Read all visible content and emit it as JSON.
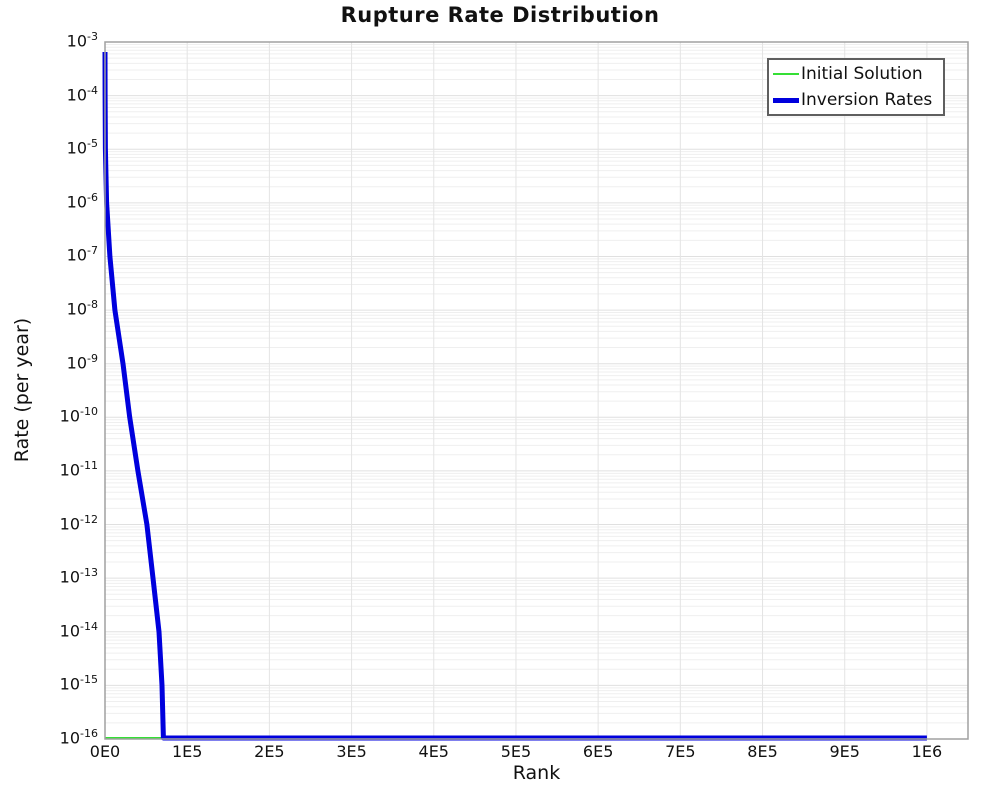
{
  "title": "Rupture Rate Distribution",
  "chart_data": {
    "type": "line",
    "title": "Rupture Rate Distribution",
    "xlabel": "Rank",
    "ylabel": "Rate (per year)",
    "x_scale": "linear",
    "y_scale": "log",
    "xlim": [
      0,
      1050000
    ],
    "ylim_exponents": [
      -16,
      -3
    ],
    "x_ticks": [
      {
        "label": "0E0",
        "value": 0
      },
      {
        "label": "1E5",
        "value": 100000
      },
      {
        "label": "2E5",
        "value": 200000
      },
      {
        "label": "3E5",
        "value": 300000
      },
      {
        "label": "4E5",
        "value": 400000
      },
      {
        "label": "5E5",
        "value": 500000
      },
      {
        "label": "6E5",
        "value": 600000
      },
      {
        "label": "7E5",
        "value": 700000
      },
      {
        "label": "8E5",
        "value": 800000
      },
      {
        "label": "9E5",
        "value": 900000
      },
      {
        "label": "1E6",
        "value": 1000000
      }
    ],
    "y_tick_exponents": [
      -3,
      -4,
      -5,
      -6,
      -7,
      -8,
      -9,
      -10,
      -11,
      -12,
      -13,
      -14,
      -15,
      -16
    ],
    "grid": true,
    "legend_position": "top-right",
    "legend": [
      {
        "label": "Initial Solution",
        "color": "#35df35",
        "line_width": 2
      },
      {
        "label": "Inversion Rates",
        "color": "#0000dd",
        "line_width": 5
      }
    ],
    "series": [
      {
        "name": "Initial Solution",
        "color": "#35df35",
        "width": 2,
        "points": [
          [
            0,
            1e-16
          ],
          [
            1000000,
            1e-16
          ]
        ]
      },
      {
        "name": "Inversion Rates",
        "color": "#0000dd",
        "width": 5,
        "points": [
          [
            0,
            0.00065
          ],
          [
            150,
            0.0001
          ],
          [
            500,
            1e-05
          ],
          [
            2000,
            1e-06
          ],
          [
            6000,
            1e-07
          ],
          [
            12000,
            1e-08
          ],
          [
            21900,
            1e-09
          ],
          [
            30000,
            1e-10
          ],
          [
            40000,
            1e-11
          ],
          [
            51000,
            1e-12
          ],
          [
            58400,
            1e-13
          ],
          [
            65700,
            1e-14
          ],
          [
            69300,
            1e-15
          ],
          [
            71000,
            1e-16
          ],
          [
            1000000,
            1e-16
          ]
        ]
      }
    ],
    "colors": {
      "grid_minor": "#efefef",
      "grid_major": "#e0e0e0",
      "grid_vertical": "#e4e4e4",
      "frame": "#a0a0a0",
      "background": "#ffffff",
      "text": "#111111"
    }
  }
}
